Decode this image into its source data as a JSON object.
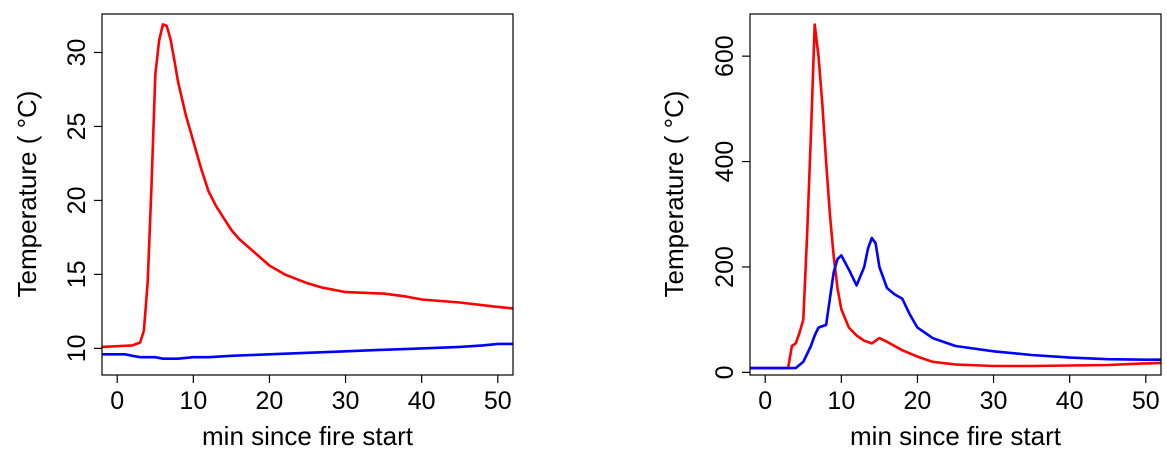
{
  "chart_data": [
    {
      "type": "line",
      "title": "",
      "xlabel": "min since fire start",
      "ylabel": "Temperature ( °C)",
      "xlim": [
        -2,
        52
      ],
      "ylim": [
        8.2,
        32.6
      ],
      "xticks": [
        0,
        10,
        20,
        30,
        40,
        50
      ],
      "yticks": [
        10,
        15,
        20,
        25,
        30
      ],
      "grid": false,
      "legend": "none",
      "series": [
        {
          "color": "#ff0000",
          "x": [
            -2,
            2,
            3,
            3.5,
            4,
            4.5,
            5,
            5.5,
            6,
            6.5,
            7,
            7.5,
            8,
            9,
            10,
            11,
            12,
            13,
            14,
            15,
            16,
            18,
            20,
            22,
            25,
            27,
            30,
            35,
            38,
            40,
            45,
            50,
            52
          ],
          "y": [
            10.1,
            10.2,
            10.4,
            11.2,
            14.5,
            21.0,
            28.5,
            30.8,
            31.9,
            31.8,
            30.9,
            29.5,
            28.0,
            25.8,
            24.0,
            22.2,
            20.6,
            19.6,
            18.8,
            18.0,
            17.4,
            16.5,
            15.6,
            15.0,
            14.4,
            14.1,
            13.8,
            13.7,
            13.5,
            13.3,
            13.1,
            12.8,
            12.7
          ]
        },
        {
          "color": "#0000ff",
          "x": [
            -2,
            1,
            2,
            3,
            4,
            5,
            6,
            7,
            8,
            10,
            12,
            15,
            20,
            25,
            30,
            35,
            40,
            45,
            48,
            50,
            52
          ],
          "y": [
            9.6,
            9.6,
            9.5,
            9.4,
            9.4,
            9.4,
            9.3,
            9.3,
            9.3,
            9.4,
            9.4,
            9.5,
            9.6,
            9.7,
            9.8,
            9.9,
            10.0,
            10.1,
            10.2,
            10.3,
            10.3
          ]
        }
      ]
    },
    {
      "type": "line",
      "title": "",
      "xlabel": "min since fire start",
      "ylabel": "Temperature ( °C)",
      "xlim": [
        -2,
        52
      ],
      "ylim": [
        -5,
        680
      ],
      "xticks": [
        0,
        10,
        20,
        30,
        40,
        50
      ],
      "yticks": [
        0,
        200,
        400,
        600
      ],
      "grid": false,
      "legend": "none",
      "series": [
        {
          "color": "#ff0000",
          "x": [
            -2,
            3,
            3.5,
            4,
            4.5,
            5,
            5.5,
            6,
            6.5,
            7,
            7.5,
            8,
            8.5,
            9,
            9.5,
            10,
            11,
            12,
            13,
            14,
            15,
            16,
            17,
            18,
            20,
            22,
            25,
            30,
            35,
            40,
            45,
            50,
            52
          ],
          "y": [
            8,
            8,
            50,
            55,
            75,
            100,
            260,
            450,
            660,
            600,
            510,
            400,
            300,
            220,
            160,
            120,
            85,
            70,
            60,
            55,
            65,
            58,
            50,
            42,
            30,
            20,
            15,
            12,
            12,
            13,
            14,
            17,
            18
          ]
        },
        {
          "color": "#0000ff",
          "x": [
            -2,
            4,
            5,
            6,
            6.5,
            7,
            8,
            8.5,
            9,
            9.5,
            10,
            11,
            12,
            13,
            13.5,
            14,
            14.5,
            15,
            16,
            17,
            18,
            19,
            20,
            22,
            25,
            30,
            35,
            40,
            45,
            50,
            52
          ],
          "y": [
            8,
            8,
            20,
            50,
            70,
            85,
            90,
            140,
            190,
            215,
            222,
            195,
            165,
            200,
            235,
            255,
            245,
            200,
            160,
            148,
            140,
            110,
            85,
            65,
            50,
            40,
            33,
            28,
            25,
            24,
            24
          ]
        }
      ]
    }
  ]
}
